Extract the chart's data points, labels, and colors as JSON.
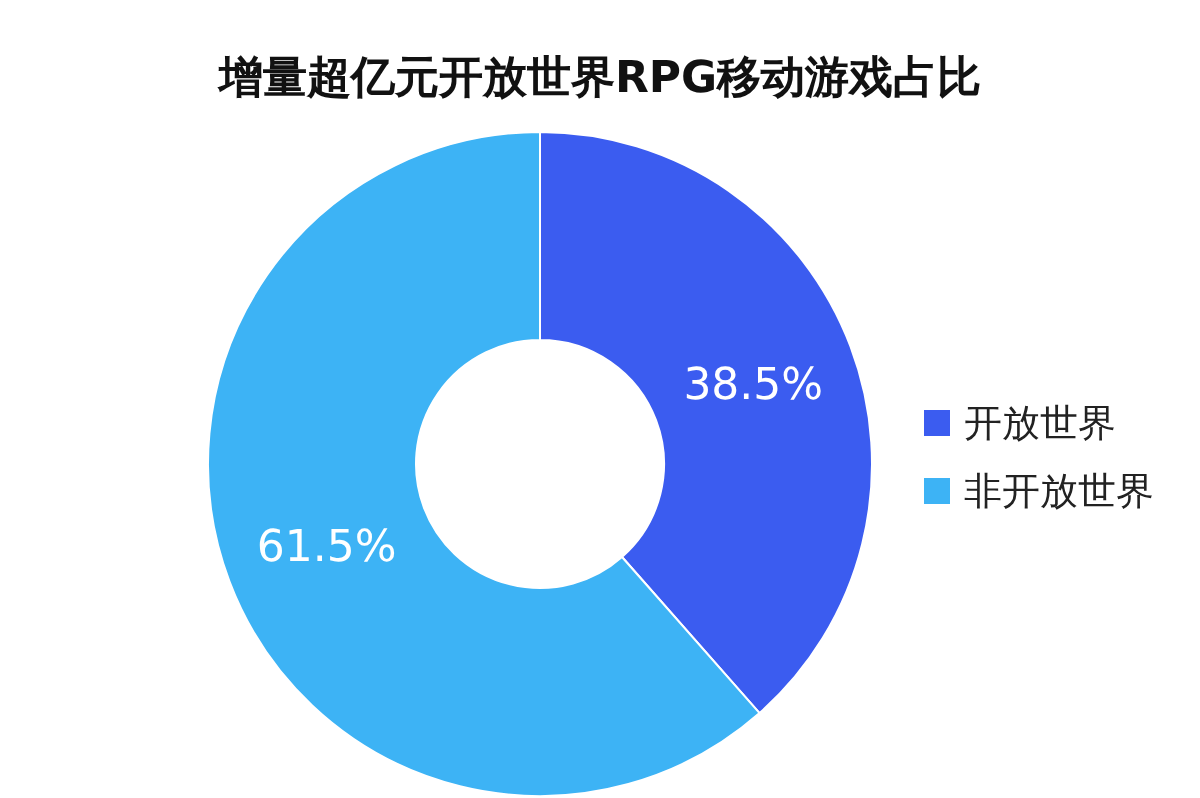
{
  "chart_data": {
    "type": "donut",
    "title": "增量超亿元开放世界RPG移动游戏占比",
    "categories": [
      "开放世界",
      "非开放世界"
    ],
    "values": [
      38.5,
      61.5
    ],
    "colors": [
      "#3b5cf0",
      "#3db3f5"
    ],
    "value_labels": [
      "38.5%",
      "61.5%"
    ],
    "legend": "right"
  }
}
